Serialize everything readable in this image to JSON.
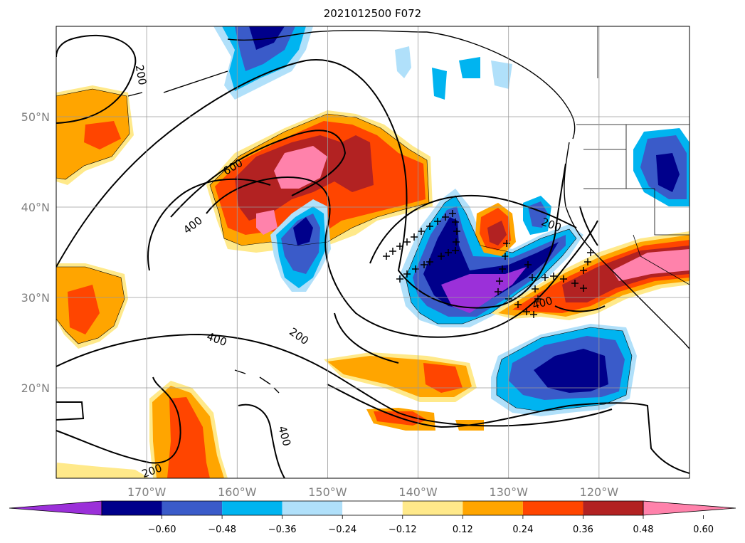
{
  "title": "2021012500 F072",
  "map": {
    "lon_range": [
      -180,
      -110
    ],
    "lat_range": [
      10,
      60
    ],
    "lon_ticks": [
      {
        "value": -170,
        "label": "170°W"
      },
      {
        "value": -160,
        "label": "160°W"
      },
      {
        "value": -150,
        "label": "150°W"
      },
      {
        "value": -140,
        "label": "140°W"
      },
      {
        "value": -130,
        "label": "130°W"
      },
      {
        "value": -120,
        "label": "120°W"
      }
    ],
    "lat_ticks": [
      {
        "value": 20,
        "label": "20°N"
      },
      {
        "value": 30,
        "label": "30°N"
      },
      {
        "value": 40,
        "label": "40°N"
      },
      {
        "value": 50,
        "label": "50°N"
      }
    ],
    "gridlines": true
  },
  "contour_labels": [
    "200",
    "600",
    "400",
    "400",
    "200",
    "200",
    "400",
    "200",
    "400",
    "400",
    "200"
  ],
  "colorbar": {
    "colors": [
      "#9b30d9",
      "#00008b",
      "#3a5bc9",
      "#00b4f0",
      "#b0e0fa",
      "#ffffff",
      "#ffe98a",
      "#ffa500",
      "#ff4500",
      "#b22222",
      "#ff82ab"
    ],
    "tick_labels": [
      "−0.60",
      "−0.48",
      "−0.36",
      "−0.24",
      "−0.12",
      "0.12",
      "0.24",
      "0.36",
      "0.48",
      "0.60"
    ],
    "extend": "both"
  }
}
